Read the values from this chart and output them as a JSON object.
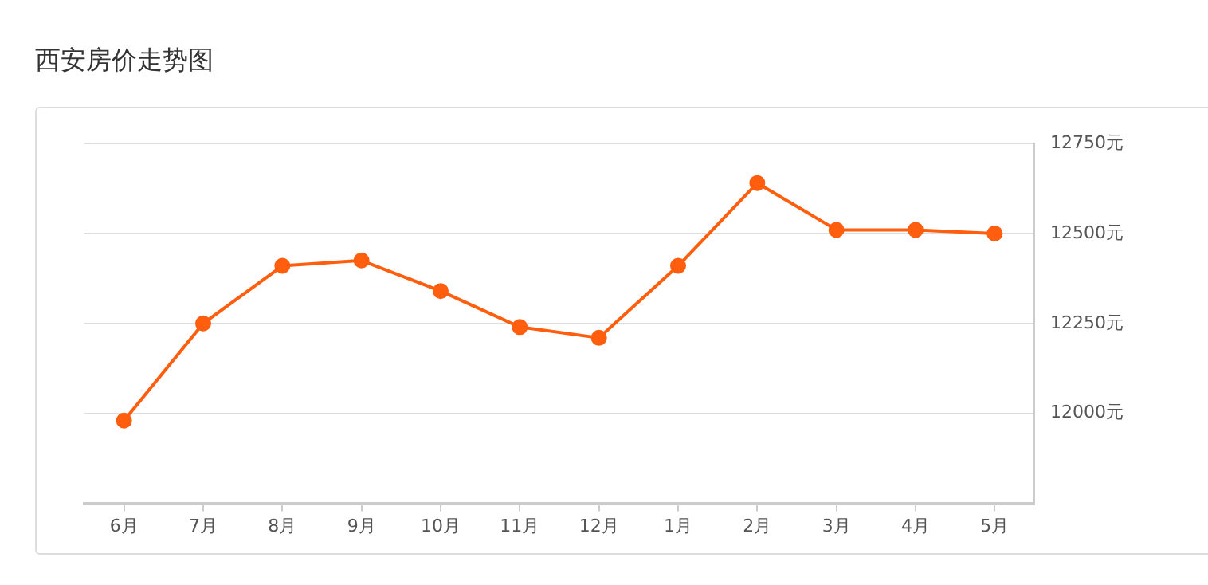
{
  "chart_data": {
    "type": "line",
    "title": "西安房价走势图",
    "categories": [
      "6月",
      "7月",
      "8月",
      "9月",
      "10月",
      "11月",
      "12月",
      "1月",
      "2月",
      "3月",
      "4月",
      "5月"
    ],
    "series": [
      {
        "color": "#ff5e0e",
        "values": [
          11980,
          12250,
          12410,
          12425,
          12340,
          12240,
          12210,
          12410,
          12640,
          12510,
          12510,
          12500
        ]
      }
    ],
    "ylim": [
      11750,
      12750
    ],
    "yticks": [
      {
        "value": 12000,
        "label": "12000元"
      },
      {
        "value": 12250,
        "label": "12250元"
      },
      {
        "value": 12500,
        "label": "12500元"
      },
      {
        "value": 12750,
        "label": "12750元"
      }
    ],
    "grid": "y",
    "legend": false,
    "marker": "circle",
    "line_style": "solid"
  }
}
